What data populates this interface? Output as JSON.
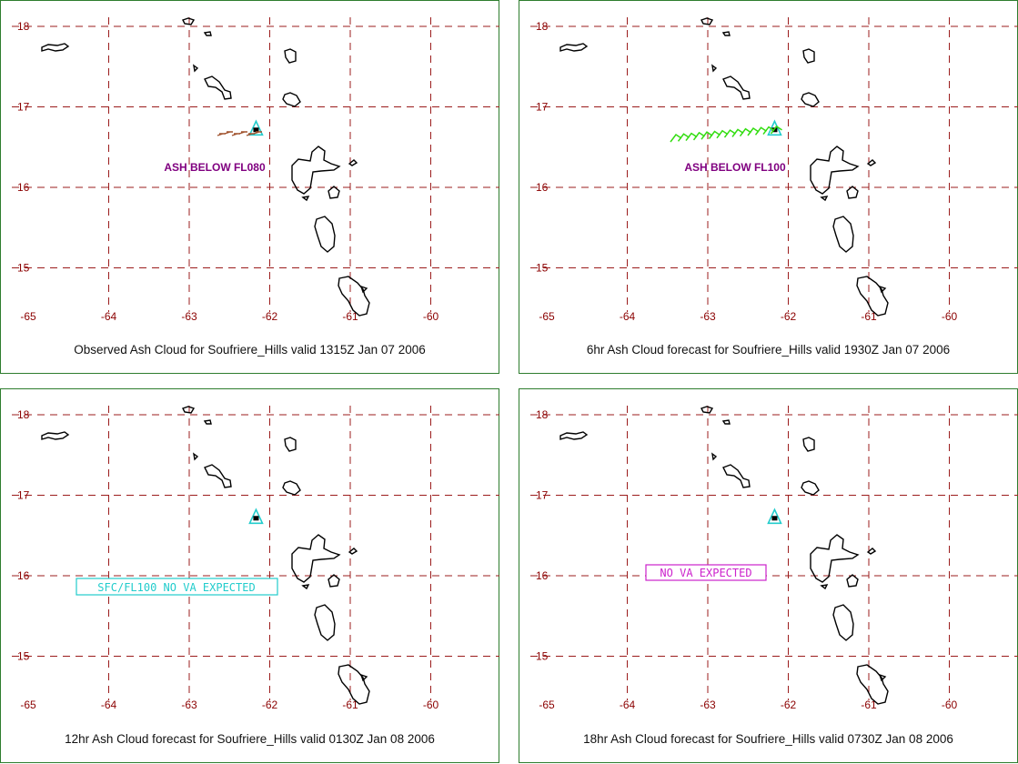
{
  "x_ticks": [
    "-65",
    "-64",
    "-63",
    "-62",
    "-61",
    "-60"
  ],
  "y_ticks": [
    "18",
    "17",
    "16",
    "15"
  ],
  "panels": [
    {
      "caption": "Observed Ash Cloud for Soufriere_Hills valid 1315Z Jan 07 2006",
      "annotation": "ASH BELOW FL080",
      "annotation_color": "#800080",
      "ash_color": "#a0522d"
    },
    {
      "caption": "6hr Ash Cloud forecast for Soufriere_Hills valid 1930Z Jan 07 2006",
      "annotation": "ASH BELOW FL100",
      "annotation_color": "#800080",
      "ash_color": "#33dd11"
    },
    {
      "caption": "12hr Ash Cloud forecast for Soufriere_Hills valid 0130Z Jan 08 2006",
      "annotation": "SFC/FL100 NO VA EXPECTED",
      "annotation_color": "#22cccc"
    },
    {
      "caption": "18hr Ash Cloud forecast for Soufriere_Hills valid 0730Z Jan 08 2006",
      "annotation": "NO VA EXPECTED",
      "annotation_color": "#cc22cc"
    }
  ],
  "volcano_marker_color": "#22cccc",
  "grid_color": "#9b1c1c"
}
